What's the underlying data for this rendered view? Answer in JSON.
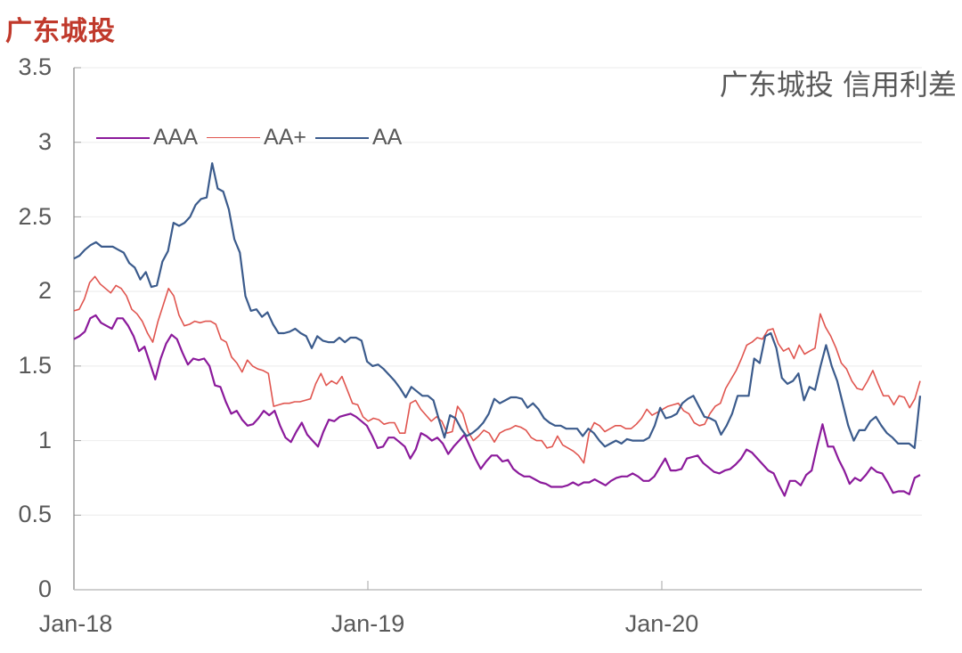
{
  "header": {
    "title": "广东城投",
    "chart_subtitle": "广东城投 信用利差"
  },
  "legend": [
    {
      "name": "AAA",
      "color": "#8b1a9b"
    },
    {
      "name": "AA+",
      "color": "#e0554f"
    },
    {
      "name": "AA",
      "color": "#3b5b8c"
    }
  ],
  "y_ticks": [
    "3.5",
    "3",
    "2.5",
    "2",
    "1.5",
    "1",
    "0.5",
    "0"
  ],
  "x_ticks": [
    "Jan-18",
    "Jan-19",
    "Jan-20"
  ],
  "chart_data": {
    "type": "line",
    "title": "广东城投 信用利差",
    "xlabel": "",
    "ylabel": "",
    "ylim": [
      0,
      3.5
    ],
    "x_range": [
      "Jan-18",
      "Nov-20"
    ],
    "x_ticks": [
      "Jan-18",
      "Jan-19",
      "Jan-20"
    ],
    "grid": true,
    "legend_position": "top-left",
    "series": [
      {
        "name": "AAA",
        "color": "#8b1a9b",
        "values": [
          1.68,
          1.7,
          1.73,
          1.82,
          1.84,
          1.79,
          1.77,
          1.75,
          1.82,
          1.82,
          1.77,
          1.7,
          1.6,
          1.63,
          1.52,
          1.41,
          1.55,
          1.65,
          1.71,
          1.68,
          1.59,
          1.51,
          1.55,
          1.54,
          1.55,
          1.5,
          1.37,
          1.36,
          1.26,
          1.18,
          1.2,
          1.14,
          1.1,
          1.11,
          1.15,
          1.2,
          1.17,
          1.2,
          1.1,
          1.02,
          0.99,
          1.06,
          1.12,
          1.04,
          1.0,
          0.96,
          1.06,
          1.14,
          1.13,
          1.16,
          1.17,
          1.18,
          1.16,
          1.13,
          1.1,
          1.03,
          0.95,
          0.96,
          1.02,
          1.02,
          0.99,
          0.96,
          0.88,
          0.94,
          1.05,
          1.03,
          1.0,
          1.02,
          0.98,
          0.91,
          0.96,
          1.0,
          1.04,
          0.96,
          0.88,
          0.81,
          0.86,
          0.9,
          0.9,
          0.86,
          0.87,
          0.81,
          0.78,
          0.76,
          0.76,
          0.74,
          0.72,
          0.71,
          0.69,
          0.69,
          0.69,
          0.7,
          0.72,
          0.7,
          0.72,
          0.72,
          0.74,
          0.72,
          0.7,
          0.73,
          0.75,
          0.76,
          0.76,
          0.78,
          0.76,
          0.73,
          0.73,
          0.76,
          0.82,
          0.88,
          0.8,
          0.8,
          0.81,
          0.88,
          0.89,
          0.9,
          0.85,
          0.82,
          0.79,
          0.78,
          0.8,
          0.81,
          0.84,
          0.88,
          0.94,
          0.92,
          0.88,
          0.84,
          0.8,
          0.78,
          0.7,
          0.63,
          0.73,
          0.73,
          0.7,
          0.77,
          0.8,
          0.96,
          1.11,
          0.96,
          0.96,
          0.87,
          0.8,
          0.71,
          0.75,
          0.73,
          0.77,
          0.82,
          0.79,
          0.78,
          0.72,
          0.65,
          0.66,
          0.66,
          0.64,
          0.75,
          0.77
        ]
      },
      {
        "name": "AA+",
        "color": "#e0554f",
        "values": [
          1.87,
          1.88,
          1.95,
          2.06,
          2.1,
          2.05,
          2.02,
          1.99,
          2.04,
          2.02,
          1.97,
          1.88,
          1.85,
          1.8,
          1.72,
          1.66,
          1.8,
          1.91,
          2.02,
          1.97,
          1.84,
          1.77,
          1.78,
          1.8,
          1.79,
          1.8,
          1.8,
          1.78,
          1.68,
          1.66,
          1.56,
          1.52,
          1.46,
          1.54,
          1.5,
          1.48,
          1.47,
          1.45,
          1.23,
          1.24,
          1.25,
          1.25,
          1.26,
          1.26,
          1.27,
          1.28,
          1.38,
          1.45,
          1.37,
          1.4,
          1.38,
          1.43,
          1.34,
          1.25,
          1.24,
          1.16,
          1.13,
          1.15,
          1.14,
          1.11,
          1.12,
          1.12,
          1.05,
          1.05,
          1.25,
          1.27,
          1.21,
          1.17,
          1.13,
          1.16,
          1.13,
          1.05,
          1.06,
          1.23,
          1.18,
          1.06,
          1.0,
          1.03,
          1.07,
          1.05,
          0.99,
          1.05,
          1.07,
          1.08,
          1.1,
          1.09,
          1.07,
          1.02,
          1.0,
          1.0,
          0.95,
          0.96,
          1.03,
          0.97,
          0.95,
          0.93,
          0.9,
          0.85,
          1.05,
          1.12,
          1.1,
          1.06,
          1.08,
          1.1,
          1.1,
          1.08,
          1.08,
          1.11,
          1.15,
          1.21,
          1.17,
          1.19,
          1.21,
          1.23,
          1.24,
          1.25,
          1.2,
          1.18,
          1.12,
          1.1,
          1.11,
          1.18,
          1.23,
          1.25,
          1.35,
          1.41,
          1.47,
          1.55,
          1.64,
          1.66,
          1.69,
          1.68,
          1.74,
          1.75,
          1.65,
          1.6,
          1.62,
          1.55,
          1.64,
          1.58,
          1.6,
          1.62,
          1.85,
          1.76,
          1.7,
          1.62,
          1.52,
          1.48,
          1.4,
          1.35,
          1.34,
          1.4,
          1.47,
          1.38,
          1.3,
          1.3,
          1.24,
          1.3,
          1.29,
          1.22,
          1.28,
          1.4
        ]
      },
      {
        "name": "AA",
        "color": "#3b5b8c",
        "values": [
          2.22,
          2.24,
          2.28,
          2.31,
          2.33,
          2.3,
          2.3,
          2.3,
          2.28,
          2.26,
          2.19,
          2.16,
          2.08,
          2.13,
          2.03,
          2.04,
          2.2,
          2.27,
          2.46,
          2.44,
          2.46,
          2.5,
          2.58,
          2.62,
          2.63,
          2.86,
          2.69,
          2.67,
          2.55,
          2.35,
          2.26,
          1.97,
          1.87,
          1.88,
          1.83,
          1.86,
          1.78,
          1.72,
          1.72,
          1.73,
          1.75,
          1.72,
          1.7,
          1.62,
          1.7,
          1.67,
          1.66,
          1.66,
          1.69,
          1.66,
          1.69,
          1.69,
          1.67,
          1.53,
          1.5,
          1.51,
          1.48,
          1.44,
          1.4,
          1.35,
          1.29,
          1.36,
          1.33,
          1.3,
          1.3,
          1.27,
          1.14,
          1.02,
          1.17,
          1.15,
          1.08,
          1.03,
          1.05,
          1.08,
          1.12,
          1.18,
          1.28,
          1.25,
          1.27,
          1.29,
          1.29,
          1.28,
          1.22,
          1.25,
          1.21,
          1.15,
          1.12,
          1.1,
          1.1,
          1.08,
          1.08,
          1.08,
          1.03,
          1.08,
          1.05,
          1.0,
          0.96,
          0.98,
          1.0,
          0.98,
          1.01,
          1.0,
          1.0,
          1.0,
          1.02,
          1.1,
          1.22,
          1.15,
          1.16,
          1.18,
          1.25,
          1.28,
          1.3,
          1.23,
          1.16,
          1.15,
          1.13,
          1.04,
          1.1,
          1.18,
          1.3,
          1.3,
          1.3,
          1.55,
          1.52,
          1.7,
          1.72,
          1.62,
          1.42,
          1.38,
          1.4,
          1.45,
          1.27,
          1.36,
          1.34,
          1.5,
          1.64,
          1.5,
          1.4,
          1.25,
          1.1,
          1.0,
          1.07,
          1.07,
          1.13,
          1.16,
          1.1,
          1.05,
          1.02,
          0.98,
          0.98,
          0.98,
          0.95,
          1.3
        ]
      }
    ]
  }
}
